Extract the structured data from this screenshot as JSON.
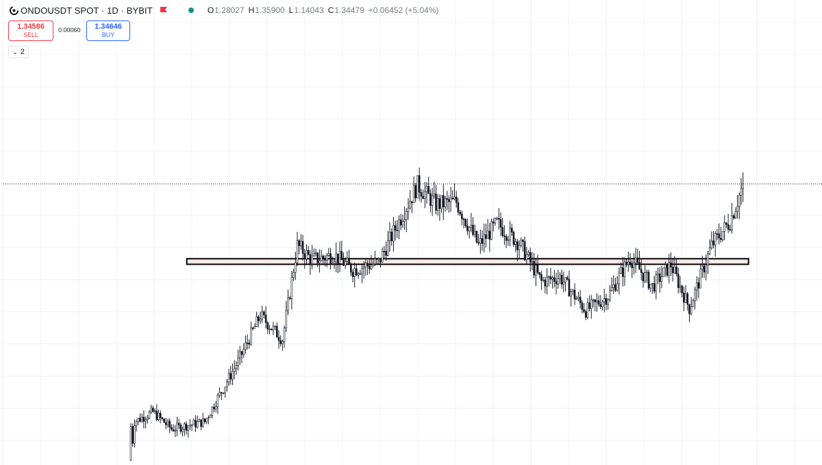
{
  "header": {
    "symbol": "ONDOUSDT SPOT · 1D · BYBIT",
    "ohlc": {
      "o_label": "O",
      "o_value": "1.28027",
      "h_label": "H",
      "h_value": "1.35900",
      "l_label": "L",
      "l_value": "1.14043",
      "c_label": "C",
      "c_value": "1.34479",
      "change": "+0.06452 (+5.04%)"
    }
  },
  "trade": {
    "sell_price": "1.34586",
    "sell_label": "SELL",
    "spread": "0.00060",
    "buy_price": "1.34646",
    "buy_label": "BUY"
  },
  "indicators_toggle": {
    "count": "2"
  },
  "colors": {
    "candle_up_fill": "#ffffff",
    "candle_border": "#131722",
    "zone_fill": "#fbe9e9",
    "zone_border": "#000000",
    "last_price_line": "#131722",
    "grid": "#f0f3fa",
    "sell": "#f23645",
    "buy": "#2962ff",
    "live_dot": "#089981"
  },
  "chart_data": {
    "type": "candlestick",
    "symbol": "ONDOUSDT",
    "interval": "1D",
    "exchange": "BYBIT",
    "last_close": 1.34479,
    "grid": true,
    "price_path_keypoints": [
      {
        "i": 0,
        "p": 0.2
      },
      {
        "i": 2,
        "p": 0.36
      },
      {
        "i": 12,
        "p": 0.4
      },
      {
        "i": 22,
        "p": 0.33
      },
      {
        "i": 40,
        "p": 0.36
      },
      {
        "i": 58,
        "p": 0.61
      },
      {
        "i": 70,
        "p": 0.8
      },
      {
        "i": 82,
        "p": 0.7
      },
      {
        "i": 90,
        "p": 1.09
      },
      {
        "i": 98,
        "p": 1.03
      },
      {
        "i": 110,
        "p": 1.05
      },
      {
        "i": 120,
        "p": 0.99
      },
      {
        "i": 134,
        "p": 1.02
      },
      {
        "i": 145,
        "p": 1.19
      },
      {
        "i": 155,
        "p": 1.34
      },
      {
        "i": 165,
        "p": 1.26
      },
      {
        "i": 176,
        "p": 1.27
      },
      {
        "i": 188,
        "p": 1.09
      },
      {
        "i": 198,
        "p": 1.18
      },
      {
        "i": 210,
        "p": 1.1
      },
      {
        "i": 222,
        "p": 0.94
      },
      {
        "i": 232,
        "p": 0.96
      },
      {
        "i": 246,
        "p": 0.82
      },
      {
        "i": 258,
        "p": 0.88
      },
      {
        "i": 270,
        "p": 1.04
      },
      {
        "i": 282,
        "p": 0.92
      },
      {
        "i": 292,
        "p": 1.01
      },
      {
        "i": 302,
        "p": 0.83
      },
      {
        "i": 314,
        "p": 1.09
      },
      {
        "i": 324,
        "p": 1.19
      },
      {
        "i": 331,
        "p": 1.34
      }
    ],
    "zone": {
      "from_index": 31,
      "to_index": 331,
      "low": 1.012,
      "high": 1.035
    }
  }
}
